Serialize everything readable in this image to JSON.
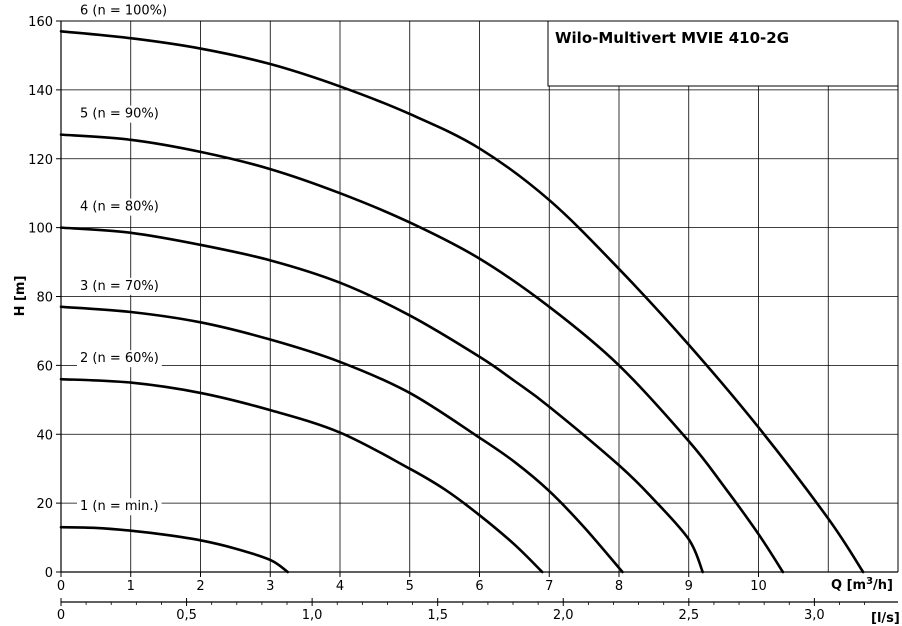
{
  "chart_data": {
    "type": "line",
    "title": "Wilo-Multivert MVIE 410-2G",
    "ylabel": "H [m]",
    "xlabel_unit_prefix": "Q [m",
    "xlabel_unit_sup": "3",
    "xlabel_unit_suffix": "/h]",
    "x2label": "[l/s]",
    "xlim": [
      0,
      12
    ],
    "ylim": [
      0,
      160
    ],
    "x2lim": [
      0,
      3.333
    ],
    "grid": true,
    "x_ticks": [
      "0",
      "1",
      "2",
      "3",
      "4",
      "5",
      "6",
      "7",
      "8",
      "9",
      "10"
    ],
    "y_ticks": [
      "0",
      "20",
      "40",
      "60",
      "80",
      "100",
      "120",
      "140",
      "160"
    ],
    "x2_ticks": [
      "0",
      "0,5",
      "1,0",
      "1,5",
      "2,0",
      "2,5",
      "3,0"
    ],
    "series": [
      {
        "name": "1 (n = min.)",
        "points": [
          [
            0,
            13
          ],
          [
            0.5,
            12.8
          ],
          [
            1,
            12
          ],
          [
            1.5,
            10.8
          ],
          [
            2,
            9.2
          ],
          [
            2.5,
            6.8
          ],
          [
            3,
            3.5
          ],
          [
            3.25,
            0
          ]
        ]
      },
      {
        "name": "2 (n = 60%)",
        "points": [
          [
            0,
            56
          ],
          [
            1,
            55
          ],
          [
            2,
            52
          ],
          [
            3,
            47
          ],
          [
            4,
            40.5
          ],
          [
            5,
            30
          ],
          [
            5.5,
            24
          ],
          [
            6,
            16.5
          ],
          [
            6.5,
            8
          ],
          [
            6.9,
            0
          ]
        ]
      },
      {
        "name": "3 (n = 70%)",
        "points": [
          [
            0,
            77
          ],
          [
            1,
            75.5
          ],
          [
            2,
            72.5
          ],
          [
            3,
            67.5
          ],
          [
            4,
            61
          ],
          [
            5,
            52
          ],
          [
            6,
            39
          ],
          [
            6.5,
            32
          ],
          [
            7,
            23.5
          ],
          [
            7.5,
            13
          ],
          [
            8.05,
            0
          ]
        ]
      },
      {
        "name": "4 (n = 80%)",
        "points": [
          [
            0,
            100
          ],
          [
            1,
            98.5
          ],
          [
            2,
            95
          ],
          [
            3,
            90.5
          ],
          [
            4,
            84
          ],
          [
            5,
            74.5
          ],
          [
            6,
            62.5
          ],
          [
            6.5,
            55.5
          ],
          [
            7,
            48
          ],
          [
            8,
            31
          ],
          [
            8.5,
            21
          ],
          [
            9,
            9.5
          ],
          [
            9.2,
            0
          ]
        ]
      },
      {
        "name": "5 (n = 90%)",
        "points": [
          [
            0,
            127
          ],
          [
            1,
            125.5
          ],
          [
            2,
            122
          ],
          [
            3,
            117
          ],
          [
            4,
            110
          ],
          [
            5,
            101.5
          ],
          [
            6,
            91
          ],
          [
            7,
            77
          ],
          [
            8,
            60
          ],
          [
            9,
            38
          ],
          [
            9.5,
            25
          ],
          [
            10,
            11
          ],
          [
            10.35,
            0
          ]
        ]
      },
      {
        "name": "6 (n = 100%)",
        "points": [
          [
            0,
            157
          ],
          [
            1,
            155
          ],
          [
            2,
            152
          ],
          [
            3,
            147.5
          ],
          [
            4,
            141
          ],
          [
            5,
            133
          ],
          [
            6,
            123
          ],
          [
            7,
            108
          ],
          [
            8,
            88
          ],
          [
            9,
            66
          ],
          [
            10,
            42
          ],
          [
            11,
            15.5
          ],
          [
            11.5,
            0
          ]
        ]
      }
    ]
  }
}
